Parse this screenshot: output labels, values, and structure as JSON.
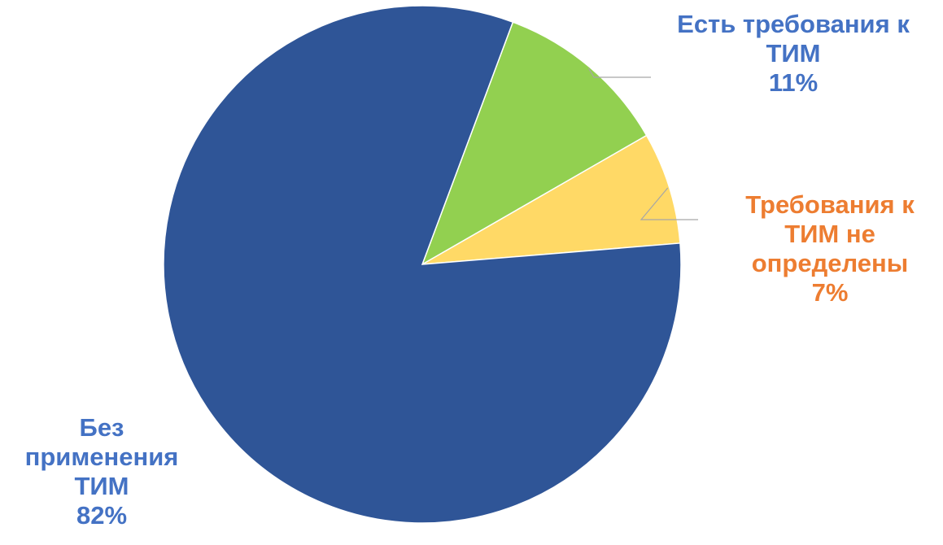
{
  "chart_data": {
    "type": "pie",
    "slices": [
      {
        "label_lines": [
          "Есть требования к",
          "ТИМ"
        ],
        "percent_label": "11%",
        "value": 11,
        "color": "#92d050",
        "label_color": "#4472c4"
      },
      {
        "label_lines": [
          "Требования к",
          "ТИМ не",
          "определены"
        ],
        "percent_label": "7%",
        "value": 7,
        "color": "#ffd966",
        "label_color": "#ed7d31"
      },
      {
        "label_lines": [
          "Без",
          "применения",
          "ТИМ"
        ],
        "percent_label": "82%",
        "value": 82,
        "color": "#2f5597",
        "label_color": "#4472c4"
      }
    ],
    "leader_line_color": "#a6a6a6"
  }
}
